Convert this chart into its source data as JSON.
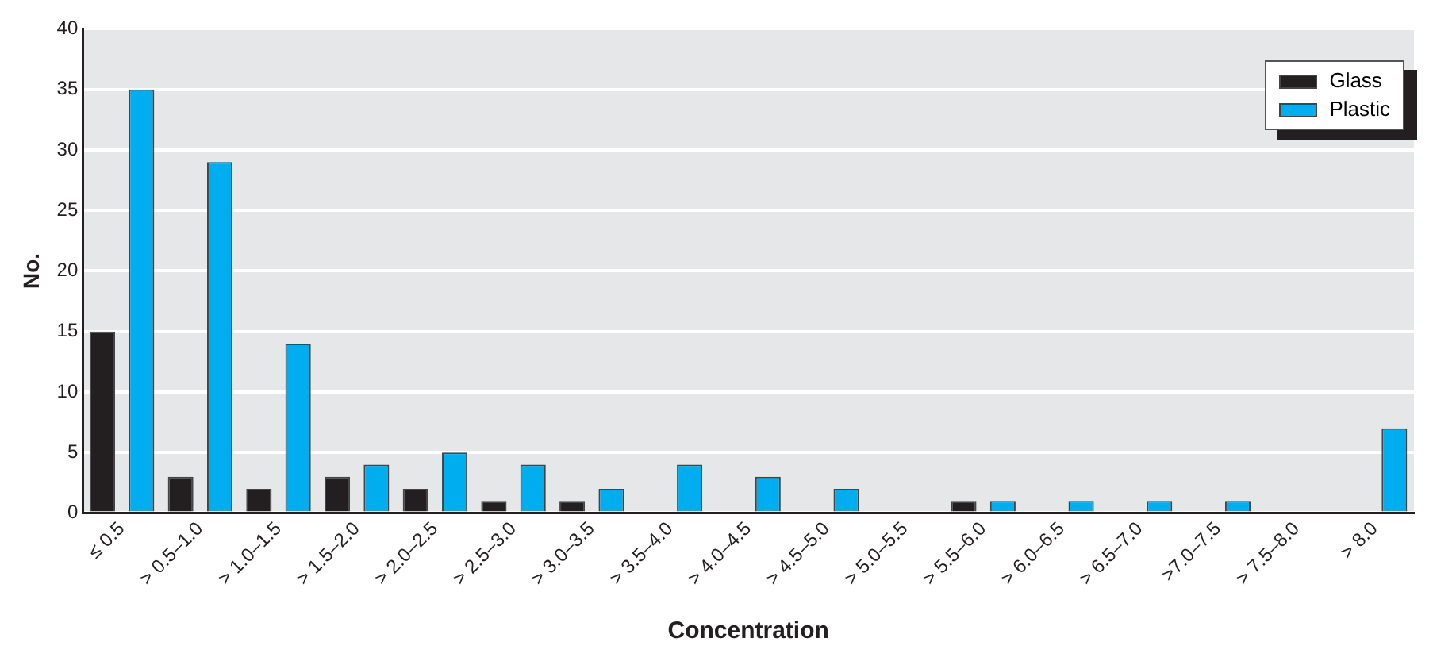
{
  "chart_data": {
    "type": "bar",
    "xlabel": "Concentration",
    "ylabel": "No.",
    "categories": [
      "≤ 0.5",
      "> 0.5–1.0",
      "> 1.0–1.5",
      "> 1.5–2.0",
      "> 2.0–2.5",
      "> 2.5–3.0",
      "> 3.0–3.5",
      "> 3.5–4.0",
      "> 4.0–4.5",
      "> 4.5–5.0",
      "> 5.0–5.5",
      "> 5.5–6.0",
      "> 6.0–6.5",
      "> 6.5–7.0",
      ">7.0–7.5",
      "> 7.5–8.0",
      "> 8.0"
    ],
    "series": [
      {
        "name": "Glass",
        "color": "#231f20",
        "values": [
          15,
          3,
          2,
          3,
          2,
          1,
          1,
          0,
          0,
          0,
          0,
          1,
          0,
          0,
          0,
          0,
          0
        ]
      },
      {
        "name": "Plastic",
        "color": "#00aeef",
        "values": [
          35,
          29,
          14,
          4,
          5,
          4,
          2,
          4,
          3,
          2,
          0,
          1,
          1,
          1,
          1,
          0,
          7
        ]
      }
    ],
    "ylim": [
      0,
      40
    ],
    "yticks": [
      0,
      5,
      10,
      15,
      20,
      25,
      30,
      35,
      40
    ],
    "grid": "y",
    "legend": "top right"
  }
}
